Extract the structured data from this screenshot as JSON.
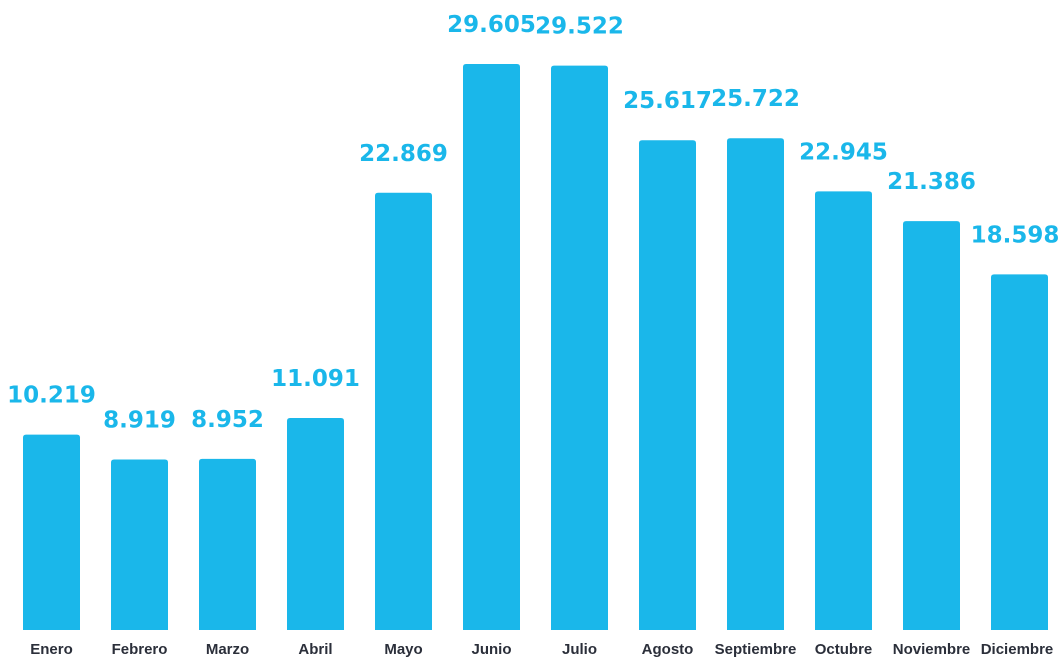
{
  "chart_data": {
    "type": "bar",
    "categories": [
      "Enero",
      "Febrero",
      "Marzo",
      "Abril",
      "Mayo",
      "Junio",
      "Julio",
      "Agosto",
      "Septiembre",
      "Octubre",
      "Noviembre",
      "Diciembre"
    ],
    "values": [
      10219,
      8919,
      8952,
      11091,
      22869,
      29605,
      29522,
      25617,
      25722,
      22945,
      21386,
      18598
    ],
    "value_labels": [
      "10.219",
      "8.919",
      "8.952",
      "11.091",
      "22.869",
      "29.605",
      "29.522",
      "25.617",
      "25.722",
      "22.945",
      "21.386",
      "18.598"
    ],
    "ylim": [
      0,
      29605
    ],
    "grid": false,
    "legend": "none",
    "colors": {
      "bar": "#1ab7ea",
      "value_label": "#1ab7ea",
      "category_label": "#2b2f3a"
    }
  }
}
